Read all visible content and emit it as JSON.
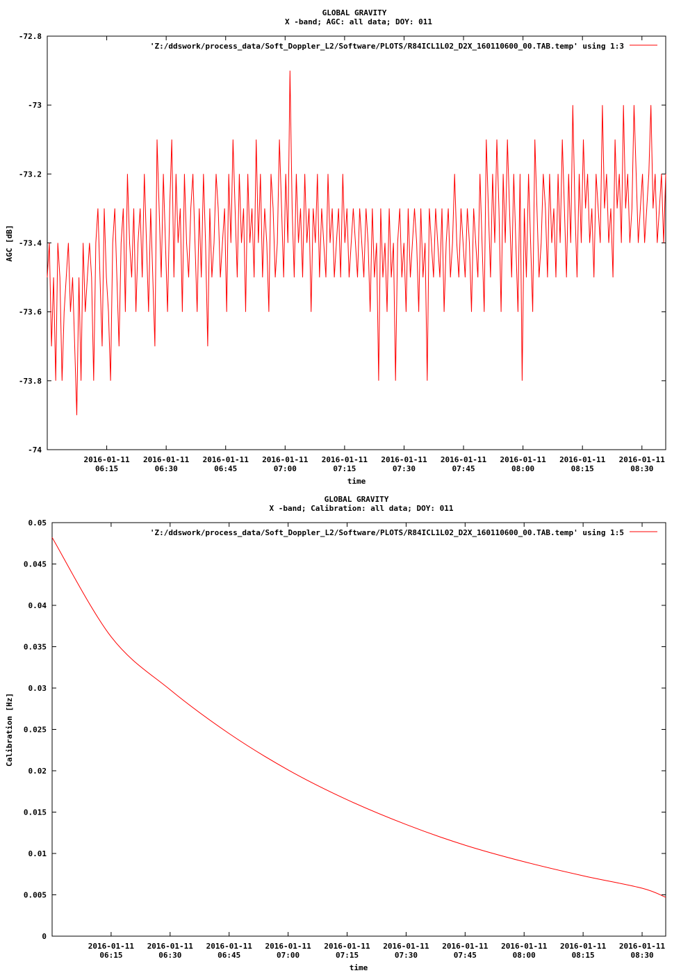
{
  "chart_data": [
    {
      "type": "line",
      "title": "GLOBAL GRAVITY",
      "subtitle": "X -band; AGC: all data; DOY: 011",
      "xlabel": "time",
      "ylabel": "AGC [dB]",
      "legend": "'Z:/ddswork/process_data/Soft_Doppler_L2/Software/PLOTS/R84ICL1L02_D2X_160110600_00.TAB.temp' using 1:3",
      "legend_position": "top-right",
      "color": "#ff0000",
      "ylim": [
        -74,
        -72.8
      ],
      "yticks": [
        -74,
        -73.8,
        -73.6,
        -73.4,
        -73.2,
        -73,
        -72.8
      ],
      "ytick_labels": [
        "-74",
        "-73.8",
        "-73.6",
        "-73.4",
        "-73.2",
        "-73",
        "-72.8"
      ],
      "xlim_minutes": [
        6.0,
        8.6
      ],
      "xtick_minutes": [
        6.25,
        6.5,
        6.75,
        7.0,
        7.25,
        7.5,
        7.75,
        8.0,
        8.25,
        8.5
      ],
      "xtick_labels": [
        [
          "2016-01-11",
          "06:15"
        ],
        [
          "2016-01-11",
          "06:30"
        ],
        [
          "2016-01-11",
          "06:45"
        ],
        [
          "2016-01-11",
          "07:00"
        ],
        [
          "2016-01-11",
          "07:15"
        ],
        [
          "2016-01-11",
          "07:30"
        ],
        [
          "2016-01-11",
          "07:45"
        ],
        [
          "2016-01-11",
          "08:00"
        ],
        [
          "2016-01-11",
          "08:15"
        ],
        [
          "2016-01-11",
          "08:30"
        ]
      ],
      "series": [
        {
          "x_start": "2016-01-11 06:00",
          "x_end": "2016-01-11 08:36",
          "y": [
            -73.5,
            -73.4,
            -73.7,
            -73.5,
            -73.8,
            -73.4,
            -73.5,
            -73.8,
            -73.6,
            -73.5,
            -73.4,
            -73.6,
            -73.5,
            -73.7,
            -73.9,
            -73.5,
            -73.8,
            -73.4,
            -73.6,
            -73.5,
            -73.4,
            -73.5,
            -73.8,
            -73.4,
            -73.3,
            -73.5,
            -73.7,
            -73.3,
            -73.5,
            -73.6,
            -73.8,
            -73.4,
            -73.3,
            -73.5,
            -73.7,
            -73.4,
            -73.3,
            -73.6,
            -73.2,
            -73.4,
            -73.5,
            -73.3,
            -73.6,
            -73.4,
            -73.3,
            -73.5,
            -73.2,
            -73.4,
            -73.6,
            -73.3,
            -73.5,
            -73.7,
            -73.1,
            -73.3,
            -73.5,
            -73.2,
            -73.4,
            -73.6,
            -73.3,
            -73.1,
            -73.5,
            -73.2,
            -73.4,
            -73.3,
            -73.6,
            -73.2,
            -73.4,
            -73.5,
            -73.3,
            -73.2,
            -73.4,
            -73.6,
            -73.3,
            -73.5,
            -73.2,
            -73.4,
            -73.7,
            -73.3,
            -73.5,
            -73.4,
            -73.2,
            -73.3,
            -73.5,
            -73.4,
            -73.3,
            -73.6,
            -73.2,
            -73.4,
            -73.1,
            -73.3,
            -73.5,
            -73.2,
            -73.4,
            -73.3,
            -73.6,
            -73.2,
            -73.4,
            -73.3,
            -73.5,
            -73.1,
            -73.4,
            -73.2,
            -73.5,
            -73.3,
            -73.4,
            -73.6,
            -73.2,
            -73.3,
            -73.5,
            -73.4,
            -73.1,
            -73.3,
            -73.5,
            -73.2,
            -73.4,
            -72.9,
            -73.3,
            -73.5,
            -73.2,
            -73.4,
            -73.3,
            -73.5,
            -73.2,
            -73.4,
            -73.3,
            -73.6,
            -73.3,
            -73.4,
            -73.2,
            -73.5,
            -73.3,
            -73.4,
            -73.5,
            -73.2,
            -73.4,
            -73.3,
            -73.5,
            -73.4,
            -73.3,
            -73.5,
            -73.2,
            -73.4,
            -73.3,
            -73.5,
            -73.4,
            -73.3,
            -73.4,
            -73.5,
            -73.3,
            -73.4,
            -73.5,
            -73.3,
            -73.4,
            -73.6,
            -73.3,
            -73.5,
            -73.4,
            -73.8,
            -73.3,
            -73.5,
            -73.4,
            -73.6,
            -73.3,
            -73.5,
            -73.4,
            -73.8,
            -73.4,
            -73.3,
            -73.5,
            -73.4,
            -73.6,
            -73.3,
            -73.5,
            -73.4,
            -73.3,
            -73.4,
            -73.6,
            -73.3,
            -73.5,
            -73.4,
            -73.8,
            -73.3,
            -73.4,
            -73.5,
            -73.3,
            -73.4,
            -73.5,
            -73.3,
            -73.6,
            -73.4,
            -73.3,
            -73.5,
            -73.4,
            -73.2,
            -73.4,
            -73.5,
            -73.3,
            -73.4,
            -73.5,
            -73.3,
            -73.4,
            -73.6,
            -73.3,
            -73.4,
            -73.5,
            -73.2,
            -73.4,
            -73.6,
            -73.1,
            -73.3,
            -73.5,
            -73.2,
            -73.4,
            -73.1,
            -73.3,
            -73.6,
            -73.2,
            -73.4,
            -73.1,
            -73.3,
            -73.5,
            -73.2,
            -73.4,
            -73.6,
            -73.2,
            -73.8,
            -73.3,
            -73.5,
            -73.2,
            -73.4,
            -73.6,
            -73.1,
            -73.3,
            -73.5,
            -73.4,
            -73.2,
            -73.3,
            -73.5,
            -73.2,
            -73.4,
            -73.3,
            -73.5,
            -73.2,
            -73.4,
            -73.1,
            -73.3,
            -73.5,
            -73.2,
            -73.4,
            -73.0,
            -73.3,
            -73.5,
            -73.2,
            -73.4,
            -73.1,
            -73.3,
            -73.2,
            -73.4,
            -73.3,
            -73.5,
            -73.2,
            -73.3,
            -73.4,
            -73.0,
            -73.3,
            -73.2,
            -73.4,
            -73.3,
            -73.5,
            -73.1,
            -73.3,
            -73.2,
            -73.4,
            -73.0,
            -73.3,
            -73.2,
            -73.4,
            -73.3,
            -73.0,
            -73.2,
            -73.4,
            -73.3,
            -73.2,
            -73.4,
            -73.3,
            -73.2,
            -73.0,
            -73.3,
            -73.2,
            -73.4,
            -73.3,
            -73.2,
            -73.4,
            -73.2
          ]
        }
      ]
    },
    {
      "type": "line",
      "title": "GLOBAL GRAVITY",
      "subtitle": "X -band; Calibration: all data; DOY: 011",
      "xlabel": "time",
      "ylabel": "Calibration [Hz]",
      "legend": "'Z:/ddswork/process_data/Soft_Doppler_L2/Software/PLOTS/R84ICL1L02_D2X_160110600_00.TAB.temp' using 1:5",
      "legend_position": "top-right",
      "color": "#ff0000",
      "ylim": [
        0,
        0.05
      ],
      "yticks": [
        0,
        0.005,
        0.01,
        0.015,
        0.02,
        0.025,
        0.03,
        0.035,
        0.04,
        0.045,
        0.05
      ],
      "ytick_labels": [
        "0",
        "0.005",
        "0.01",
        "0.015",
        "0.02",
        "0.025",
        "0.03",
        "0.035",
        "0.04",
        "0.045",
        "0.05"
      ],
      "xlim_minutes": [
        6.0,
        8.6
      ],
      "xtick_minutes": [
        6.25,
        6.5,
        6.75,
        7.0,
        7.25,
        7.5,
        7.75,
        8.0,
        8.25,
        8.5
      ],
      "xtick_labels": [
        [
          "2016-01-11",
          "06:15"
        ],
        [
          "2016-01-11",
          "06:30"
        ],
        [
          "2016-01-11",
          "06:45"
        ],
        [
          "2016-01-11",
          "07:00"
        ],
        [
          "2016-01-11",
          "07:15"
        ],
        [
          "2016-01-11",
          "07:30"
        ],
        [
          "2016-01-11",
          "07:45"
        ],
        [
          "2016-01-11",
          "08:00"
        ],
        [
          "2016-01-11",
          "08:15"
        ],
        [
          "2016-01-11",
          "08:30"
        ]
      ],
      "series": [
        {
          "x": [
            "06:00",
            "06:15",
            "06:30",
            "06:45",
            "07:00",
            "07:15",
            "07:30",
            "07:45",
            "08:00",
            "08:15",
            "08:30",
            "08:36"
          ],
          "y": [
            0.0482,
            0.0362,
            0.0298,
            0.0245,
            0.0201,
            0.0165,
            0.0135,
            0.011,
            0.009,
            0.0073,
            0.0058,
            0.0047
          ]
        }
      ]
    }
  ]
}
